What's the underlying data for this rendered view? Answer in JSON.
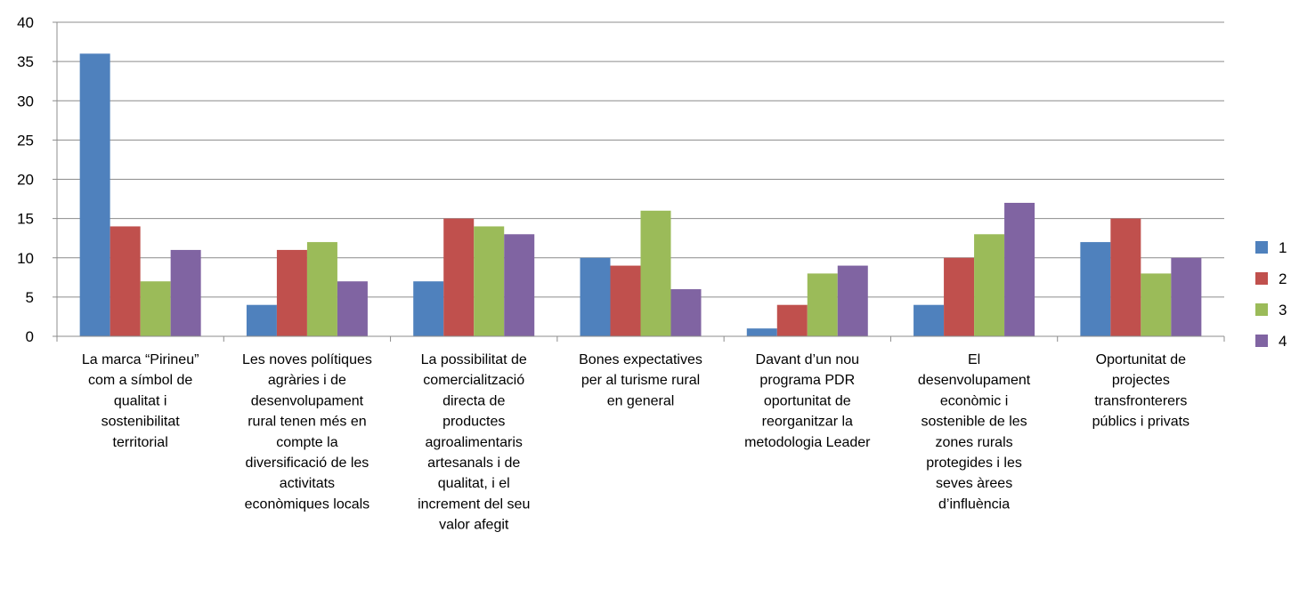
{
  "chart_data": {
    "type": "bar",
    "title": "",
    "xlabel": "",
    "ylabel": "",
    "ylim": [
      0,
      40
    ],
    "yticks": [
      0,
      5,
      10,
      15,
      20,
      25,
      30,
      35,
      40
    ],
    "grid": true,
    "legend_position": "right",
    "categories": [
      [
        "La marca “Pirineu”",
        "com a símbol de",
        "qualitat i",
        "sostenibilitat",
        "territorial"
      ],
      [
        "Les noves polítiques",
        "agràries i de",
        "desenvolupament",
        "rural tenen més en",
        "compte la",
        "diversificació de les",
        "activitats",
        "econòmiques locals"
      ],
      [
        "La possibilitat de",
        "comercialització",
        "directa de",
        "productes",
        "agroalimentaris",
        "artesanals i de",
        "qualitat, i el",
        "increment del seu",
        "valor afegit"
      ],
      [
        "Bones expectatives",
        "per al turisme rural",
        "en general"
      ],
      [
        "Davant d’un nou",
        "programa PDR",
        "oportunitat de",
        "reorganitzar la",
        "metodologia Leader"
      ],
      [
        "El",
        "desenvolupament",
        "econòmic i",
        "sostenible de les",
        "zones rurals",
        "protegides i les",
        "seves àrees",
        "d’influència"
      ],
      [
        "Oportunitat de",
        "projectes",
        "transfronterers",
        "públics i privats"
      ]
    ],
    "series": [
      {
        "name": "1",
        "color": "#4f81bd",
        "values": [
          36,
          4,
          7,
          10,
          1,
          4,
          12
        ]
      },
      {
        "name": "2",
        "color": "#c0504d",
        "values": [
          14,
          11,
          15,
          9,
          4,
          10,
          15
        ]
      },
      {
        "name": "3",
        "color": "#9bbb59",
        "values": [
          7,
          12,
          14,
          16,
          8,
          13,
          8
        ]
      },
      {
        "name": "4",
        "color": "#8064a2",
        "values": [
          11,
          7,
          13,
          6,
          9,
          17,
          10
        ]
      }
    ]
  }
}
